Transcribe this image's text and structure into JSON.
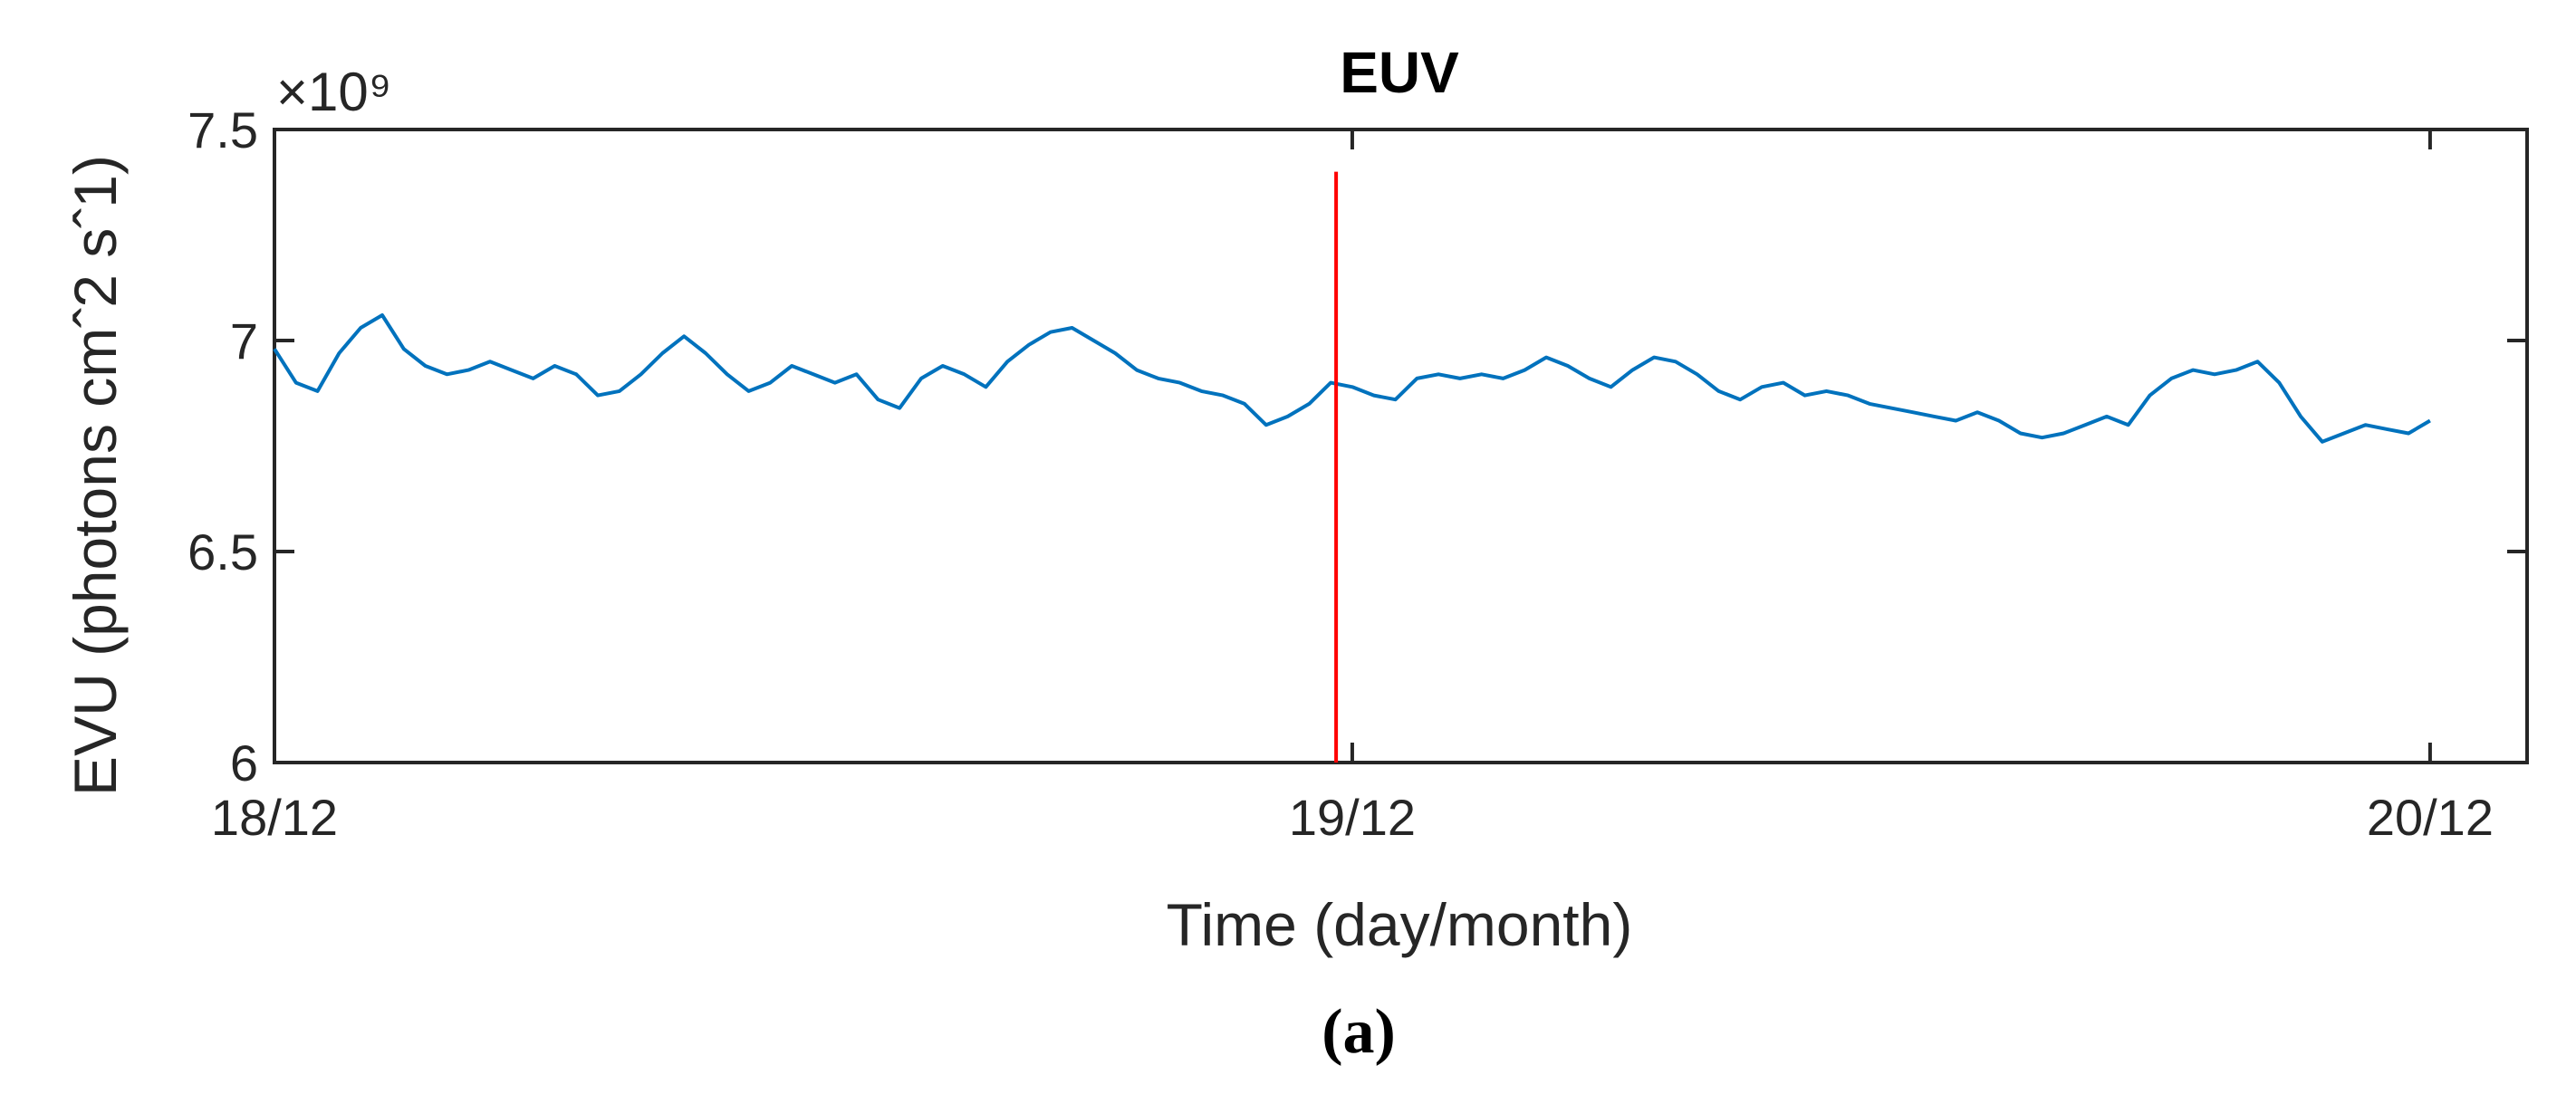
{
  "chart_data": {
    "type": "line",
    "title": "EUV",
    "xlabel": "Time (day/month)",
    "ylabel": "EVU (photons cmˆ2 sˆ1)",
    "y_exponent": "×10⁹",
    "caption": "(a)",
    "x_tick_labels": [
      "18/12",
      "19/12",
      "20/12"
    ],
    "y_tick_labels": [
      "6",
      "6.5",
      "7",
      "7.5"
    ],
    "y_ticks": [
      6,
      6.5,
      7,
      7.5
    ],
    "xlim": [
      0,
      2.09
    ],
    "ylim": [
      6,
      7.5
    ],
    "x_unit": "days since 18/12",
    "grid": false,
    "series": [
      {
        "color": "#0072BD",
        "points": [
          [
            0.0,
            6.98
          ],
          [
            0.02,
            6.9
          ],
          [
            0.04,
            6.88
          ],
          [
            0.06,
            6.97
          ],
          [
            0.08,
            7.03
          ],
          [
            0.1,
            7.06
          ],
          [
            0.12,
            6.98
          ],
          [
            0.14,
            6.94
          ],
          [
            0.16,
            6.92
          ],
          [
            0.18,
            6.93
          ],
          [
            0.2,
            6.95
          ],
          [
            0.22,
            6.93
          ],
          [
            0.24,
            6.91
          ],
          [
            0.26,
            6.94
          ],
          [
            0.28,
            6.92
          ],
          [
            0.3,
            6.87
          ],
          [
            0.32,
            6.88
          ],
          [
            0.34,
            6.92
          ],
          [
            0.36,
            6.97
          ],
          [
            0.38,
            7.01
          ],
          [
            0.4,
            6.97
          ],
          [
            0.42,
            6.92
          ],
          [
            0.44,
            6.88
          ],
          [
            0.46,
            6.9
          ],
          [
            0.48,
            6.94
          ],
          [
            0.5,
            6.92
          ],
          [
            0.52,
            6.9
          ],
          [
            0.54,
            6.92
          ],
          [
            0.56,
            6.86
          ],
          [
            0.58,
            6.84
          ],
          [
            0.6,
            6.91
          ],
          [
            0.62,
            6.94
          ],
          [
            0.64,
            6.92
          ],
          [
            0.66,
            6.89
          ],
          [
            0.68,
            6.95
          ],
          [
            0.7,
            6.99
          ],
          [
            0.72,
            7.02
          ],
          [
            0.74,
            7.03
          ],
          [
            0.76,
            7.0
          ],
          [
            0.78,
            6.97
          ],
          [
            0.8,
            6.93
          ],
          [
            0.82,
            6.91
          ],
          [
            0.84,
            6.9
          ],
          [
            0.86,
            6.88
          ],
          [
            0.88,
            6.87
          ],
          [
            0.9,
            6.85
          ],
          [
            0.92,
            6.8
          ],
          [
            0.94,
            6.82
          ],
          [
            0.96,
            6.85
          ],
          [
            0.98,
            6.9
          ],
          [
            1.0,
            6.89
          ],
          [
            1.02,
            6.87
          ],
          [
            1.04,
            6.86
          ],
          [
            1.06,
            6.91
          ],
          [
            1.08,
            6.92
          ],
          [
            1.1,
            6.91
          ],
          [
            1.12,
            6.92
          ],
          [
            1.14,
            6.91
          ],
          [
            1.16,
            6.93
          ],
          [
            1.18,
            6.96
          ],
          [
            1.2,
            6.94
          ],
          [
            1.22,
            6.91
          ],
          [
            1.24,
            6.89
          ],
          [
            1.26,
            6.93
          ],
          [
            1.28,
            6.96
          ],
          [
            1.3,
            6.95
          ],
          [
            1.32,
            6.92
          ],
          [
            1.34,
            6.88
          ],
          [
            1.36,
            6.86
          ],
          [
            1.38,
            6.89
          ],
          [
            1.4,
            6.9
          ],
          [
            1.42,
            6.87
          ],
          [
            1.44,
            6.88
          ],
          [
            1.46,
            6.87
          ],
          [
            1.48,
            6.85
          ],
          [
            1.5,
            6.84
          ],
          [
            1.52,
            6.83
          ],
          [
            1.54,
            6.82
          ],
          [
            1.56,
            6.81
          ],
          [
            1.58,
            6.83
          ],
          [
            1.6,
            6.81
          ],
          [
            1.62,
            6.78
          ],
          [
            1.64,
            6.77
          ],
          [
            1.66,
            6.78
          ],
          [
            1.68,
            6.8
          ],
          [
            1.7,
            6.82
          ],
          [
            1.72,
            6.8
          ],
          [
            1.74,
            6.87
          ],
          [
            1.76,
            6.91
          ],
          [
            1.78,
            6.93
          ],
          [
            1.8,
            6.92
          ],
          [
            1.82,
            6.93
          ],
          [
            1.84,
            6.95
          ],
          [
            1.86,
            6.9
          ],
          [
            1.88,
            6.82
          ],
          [
            1.9,
            6.76
          ],
          [
            1.92,
            6.78
          ],
          [
            1.94,
            6.8
          ],
          [
            1.96,
            6.79
          ],
          [
            1.98,
            6.78
          ],
          [
            2.0,
            6.81
          ]
        ]
      }
    ],
    "marker_line": {
      "x": 0.985,
      "y_top": 7.4,
      "y_bottom": 6,
      "color": "#FF0000"
    }
  }
}
